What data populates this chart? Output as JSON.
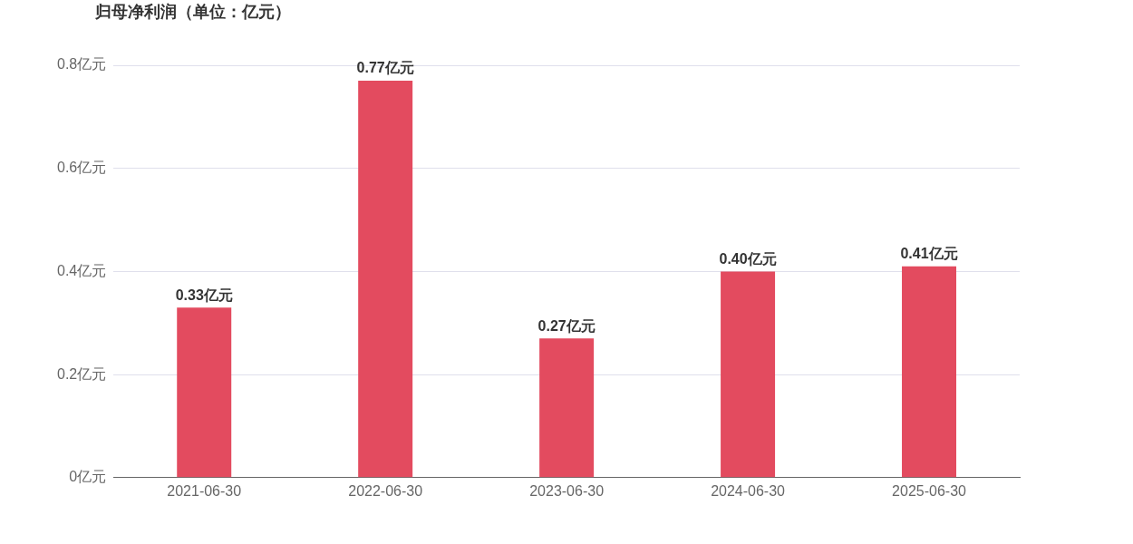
{
  "chart_data": {
    "type": "bar",
    "title": "归母净利润（单位：亿元）",
    "categories": [
      "2021-06-30",
      "2022-06-30",
      "2023-06-30",
      "2024-06-30",
      "2025-06-30"
    ],
    "values": [
      0.33,
      0.77,
      0.27,
      0.4,
      0.41
    ],
    "value_labels": [
      "0.33亿元",
      "0.77亿元",
      "0.27亿元",
      "0.40亿元",
      "0.41亿元"
    ],
    "color": "#e34b5f",
    "ylim": [
      0,
      0.8
    ],
    "yticks": [
      {
        "value": 0,
        "label": "0亿元"
      },
      {
        "value": 0.2,
        "label": "0.2亿元"
      },
      {
        "value": 0.4,
        "label": "0.4亿元"
      },
      {
        "value": 0.6,
        "label": "0.6亿元"
      },
      {
        "value": 0.8,
        "label": "0.8亿元"
      }
    ],
    "grid": "y",
    "legend": false
  }
}
